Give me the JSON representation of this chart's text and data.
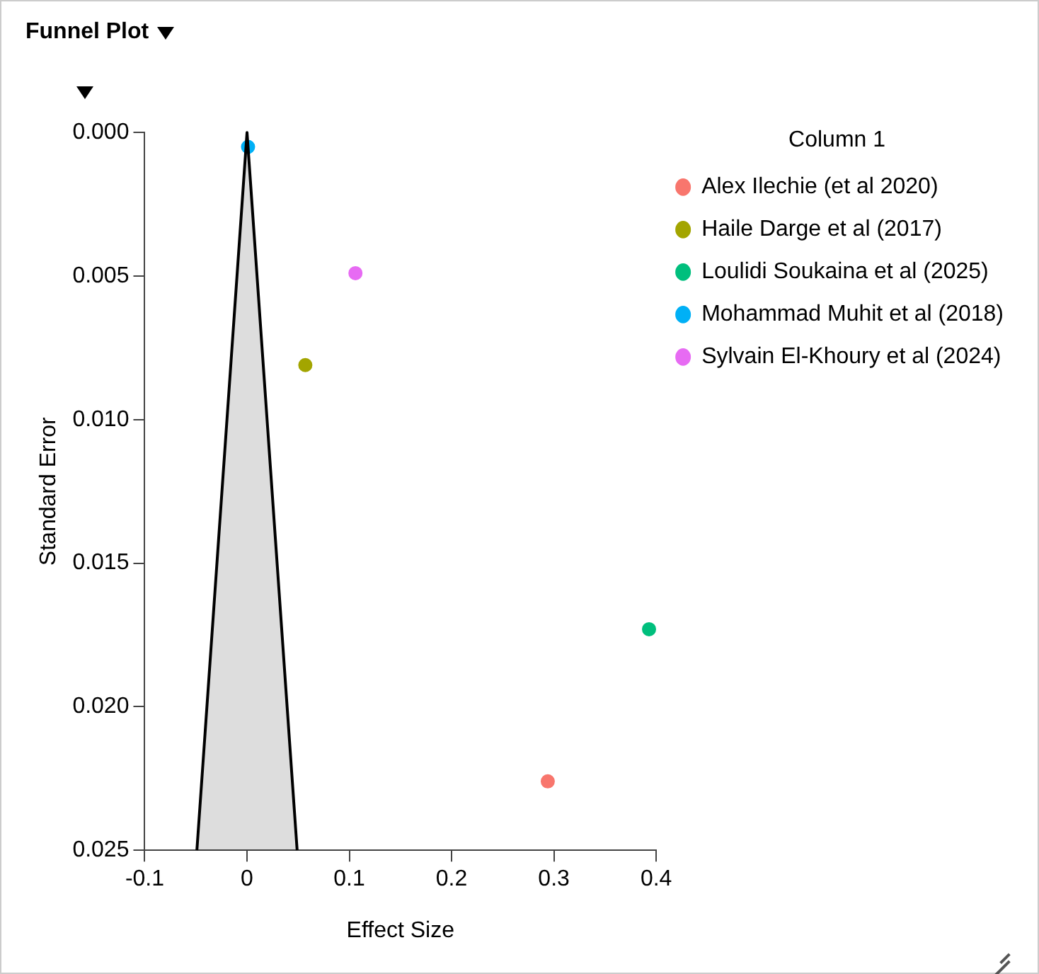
{
  "chart_data": {
    "type": "scatter",
    "title": "Funnel Plot",
    "xlabel": "Effect Size",
    "ylabel": "Standard Error",
    "legend_title": "Column 1",
    "xlim": [
      -0.1,
      0.4
    ],
    "ylim": [
      0.025,
      0
    ],
    "xticks": [
      -0.1,
      0,
      0.1,
      0.2,
      0.3,
      0.4
    ],
    "yticks": [
      {
        "value": 0,
        "label": "0.000"
      },
      {
        "value": 0.005,
        "label": "0.005"
      },
      {
        "value": 0.01,
        "label": "0.010"
      },
      {
        "value": 0.015,
        "label": "0.015"
      },
      {
        "value": 0.02,
        "label": "0.020"
      },
      {
        "value": 0.025,
        "label": "0.025"
      }
    ],
    "grid": false,
    "legend": "right",
    "marker": "circle",
    "series": [
      {
        "type": "line",
        "marker": "none",
        "color": "#000000",
        "x": [
          -0.049,
          0,
          0.049
        ],
        "values": [
          0.025,
          0,
          0.025
        ]
      },
      {
        "name": "Alex Ilechie (et al 2020)",
        "color": "#f8766d",
        "x": [
          0.294
        ],
        "values": [
          0.0226
        ]
      },
      {
        "name": "Haile Darge et al (2017)",
        "color": "#a3a500",
        "x": [
          0.057
        ],
        "values": [
          0.0081
        ]
      },
      {
        "name": "Loulidi Soukaina et al (2025)",
        "color": "#00bf7d",
        "x": [
          0.393
        ],
        "values": [
          0.0173
        ]
      },
      {
        "name": "Mohammad Muhit et al (2018)",
        "color": "#00b0f6",
        "x": [
          0.001
        ],
        "values": [
          0.0005
        ]
      },
      {
        "name": "Sylvain El-Khoury et al (2024)",
        "color": "#e76bf3",
        "x": [
          0.106
        ],
        "values": [
          0.0049
        ]
      }
    ]
  }
}
